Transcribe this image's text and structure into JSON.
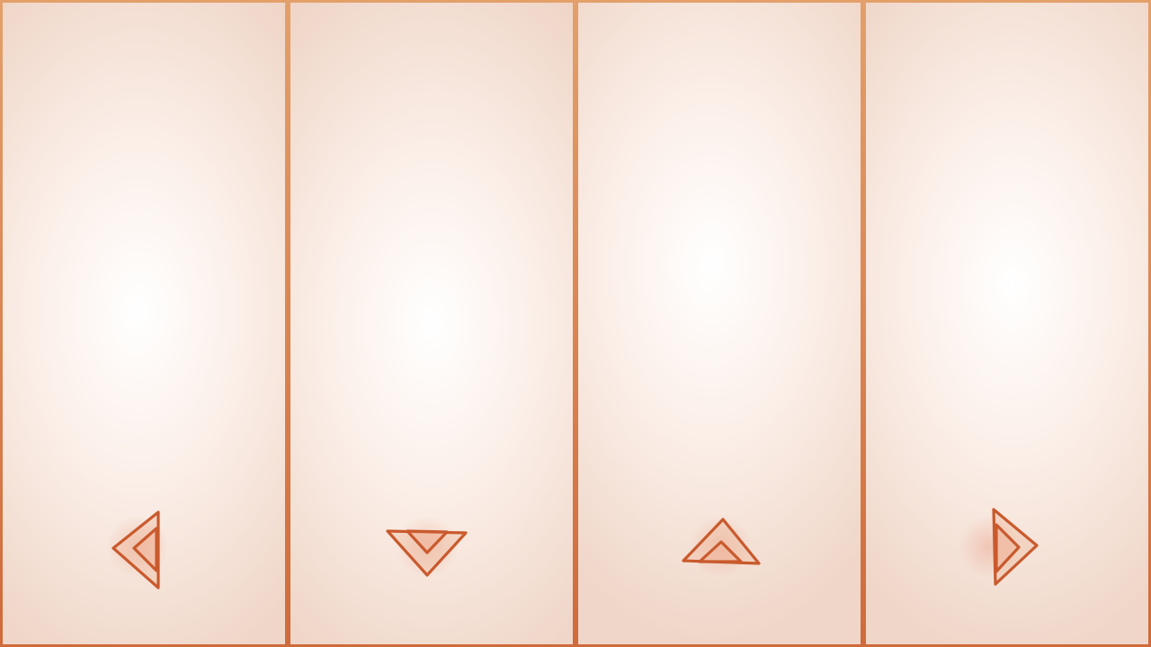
{
  "game": {
    "lanes": [
      {
        "id": "lane-1",
        "direction": "left",
        "receptor_icon": "left-arrow-icon"
      },
      {
        "id": "lane-2",
        "direction": "down",
        "receptor_icon": "down-arrow-icon"
      },
      {
        "id": "lane-3",
        "direction": "up",
        "receptor_icon": "up-arrow-icon"
      },
      {
        "id": "lane-4",
        "direction": "right",
        "receptor_icon": "right-arrow-icon"
      }
    ]
  },
  "colors": {
    "lane_divider": "#d0733f",
    "receptor_stroke": "#c95a2d",
    "lane_center": "#ffffff",
    "lane_edge": "#efd6c8"
  }
}
